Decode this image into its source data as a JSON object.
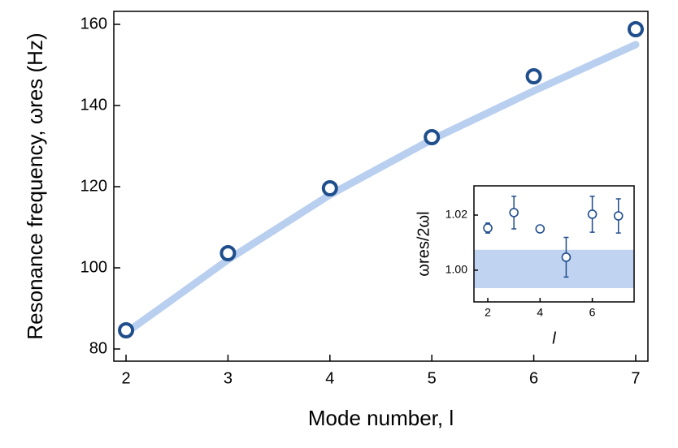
{
  "chart_data": [
    {
      "type": "scatter",
      "xlabel": "Mode number, l",
      "ylabel": "Resonance frequency, ωres (Hz)",
      "x": [
        2,
        3,
        4,
        5,
        6,
        7
      ],
      "values": [
        84.6,
        103.6,
        119.6,
        132.2,
        147.2,
        158.8
      ],
      "color": "#1f4e8c",
      "fit": {
        "x": [
          2,
          3,
          4,
          5,
          6,
          7
        ],
        "values": [
          84,
          102,
          118,
          131.6,
          143.6,
          155
        ],
        "color": "#b9cff0"
      },
      "xlim": [
        1.88,
        7.12
      ],
      "ylim": [
        77,
        163.2
      ],
      "xticks": [
        2,
        3,
        4,
        5,
        6,
        7
      ],
      "yticks": [
        80,
        100,
        120,
        140,
        160
      ]
    },
    {
      "type": "errorbar",
      "xlabel": "l",
      "ylabel": "ωres/2ωl",
      "x": [
        2,
        3,
        4,
        5,
        6,
        7
      ],
      "values": [
        1.0153,
        1.0209,
        1.015,
        1.0047,
        1.0203,
        1.0197
      ],
      "errors": [
        0.0018,
        0.0059,
        0.0006,
        0.0072,
        0.0065,
        0.0062
      ],
      "color": "#1f4e8c",
      "band": [
        0.9935,
        1.0074
      ],
      "band_color": "#c0d4f2",
      "xlim": [
        1.47,
        7.6
      ],
      "ylim": [
        0.9885,
        1.0306
      ],
      "xticks": [
        2,
        4,
        6
      ],
      "yticks": [
        {
          "value": 1.0,
          "label": "1.00"
        },
        {
          "value": 1.02,
          "label": "1.02"
        }
      ]
    }
  ]
}
